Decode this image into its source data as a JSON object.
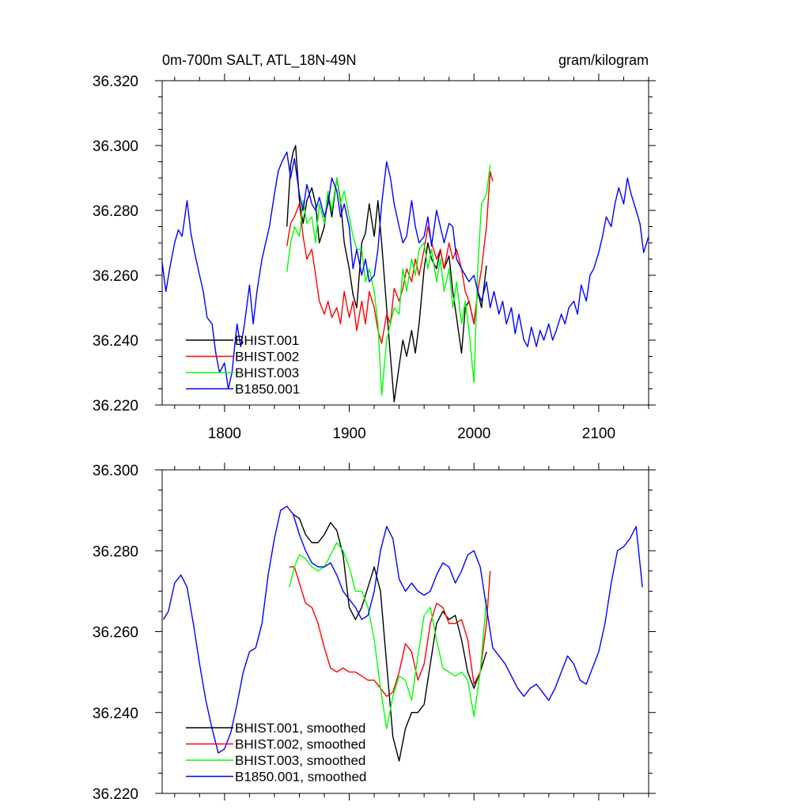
{
  "chart_data": [
    {
      "type": "line",
      "title": "0m-700m SALT, ATL_18N-49N",
      "units": "gram/kilogram",
      "xlim": [
        1750,
        2140
      ],
      "ylim": [
        36.22,
        36.32
      ],
      "x_ticks": [
        1800,
        1900,
        2000,
        2100
      ],
      "x_tick_labels": [
        "1800",
        "1900",
        "2000",
        "2100"
      ],
      "y_ticks": [
        36.22,
        36.24,
        36.26,
        36.28,
        36.3,
        36.32
      ],
      "y_tick_labels": [
        "36.220",
        "36.240",
        "36.260",
        "36.280",
        "36.300",
        "36.320"
      ],
      "grid": false,
      "legend_position": "bottom-left",
      "series": [
        {
          "name": "BHIST.001",
          "color": "#000000",
          "x": [
            1850,
            1853,
            1855,
            1857,
            1860,
            1863,
            1866,
            1870,
            1873,
            1876,
            1880,
            1883,
            1886,
            1890,
            1893,
            1896,
            1900,
            1903,
            1906,
            1910,
            1913,
            1916,
            1920,
            1923,
            1926,
            1930,
            1933,
            1936,
            1940,
            1943,
            1946,
            1950,
            1953,
            1956,
            1960,
            1963,
            1966,
            1970,
            1973,
            1976,
            1980,
            1983,
            1986,
            1990,
            1993,
            1996,
            2000,
            2003,
            2006,
            2010
          ],
          "y": [
            36.275,
            36.294,
            36.298,
            36.3,
            36.283,
            36.276,
            36.283,
            36.287,
            36.282,
            36.27,
            36.275,
            36.285,
            36.278,
            36.29,
            36.283,
            36.27,
            36.262,
            36.254,
            36.25,
            36.27,
            36.273,
            36.282,
            36.272,
            36.283,
            36.27,
            36.25,
            36.235,
            36.221,
            36.232,
            36.24,
            36.235,
            36.243,
            36.236,
            36.245,
            36.262,
            36.27,
            36.265,
            36.262,
            36.268,
            36.262,
            36.266,
            36.255,
            36.247,
            36.236,
            36.25,
            36.252,
            36.245,
            36.255,
            36.25,
            36.263
          ]
        },
        {
          "name": "BHIST.002",
          "color": "#ff0000",
          "x": [
            1850,
            1853,
            1856,
            1860,
            1863,
            1866,
            1870,
            1873,
            1876,
            1880,
            1883,
            1886,
            1890,
            1893,
            1896,
            1900,
            1903,
            1906,
            1910,
            1913,
            1916,
            1920,
            1923,
            1926,
            1930,
            1933,
            1936,
            1940,
            1943,
            1946,
            1950,
            1953,
            1956,
            1960,
            1963,
            1966,
            1970,
            1973,
            1976,
            1980,
            1983,
            1986,
            1990,
            1993,
            1996,
            2000,
            2003,
            2006,
            2010,
            2013,
            2015
          ],
          "y": [
            36.269,
            36.276,
            36.278,
            36.282,
            36.272,
            36.265,
            36.268,
            36.26,
            36.252,
            36.248,
            36.252,
            36.247,
            36.25,
            36.245,
            36.255,
            36.247,
            36.252,
            36.243,
            36.252,
            36.245,
            36.255,
            36.25,
            36.243,
            36.239,
            36.248,
            36.245,
            36.256,
            36.252,
            36.256,
            36.262,
            36.258,
            36.265,
            36.26,
            36.268,
            36.275,
            36.27,
            36.265,
            36.268,
            36.262,
            36.27,
            36.265,
            36.268,
            36.262,
            36.255,
            36.252,
            36.245,
            36.255,
            36.262,
            36.275,
            36.292,
            36.289
          ]
        },
        {
          "name": "BHIST.003",
          "color": "#00ff00",
          "x": [
            1850,
            1853,
            1856,
            1860,
            1863,
            1866,
            1870,
            1873,
            1876,
            1880,
            1883,
            1886,
            1890,
            1893,
            1896,
            1900,
            1903,
            1906,
            1910,
            1913,
            1916,
            1920,
            1923,
            1926,
            1930,
            1933,
            1936,
            1940,
            1943,
            1946,
            1950,
            1953,
            1956,
            1960,
            1963,
            1966,
            1970,
            1973,
            1976,
            1980,
            1983,
            1986,
            1990,
            1993,
            1996,
            2000,
            2003,
            2006,
            2010,
            2013
          ],
          "y": [
            36.261,
            36.27,
            36.275,
            36.272,
            36.283,
            36.276,
            36.278,
            36.27,
            36.282,
            36.276,
            36.286,
            36.28,
            36.29,
            36.282,
            36.286,
            36.278,
            36.272,
            36.268,
            36.268,
            36.258,
            36.262,
            36.255,
            36.245,
            36.223,
            36.24,
            36.245,
            36.25,
            36.248,
            36.262,
            36.255,
            36.265,
            36.26,
            36.268,
            36.27,
            36.262,
            36.268,
            36.258,
            36.265,
            36.255,
            36.262,
            36.25,
            36.258,
            36.245,
            36.252,
            36.243,
            36.227,
            36.262,
            36.282,
            36.285,
            36.294
          ]
        },
        {
          "name": "B1850.001",
          "color": "#0000ff",
          "x": [
            1750,
            1753,
            1756,
            1760,
            1763,
            1766,
            1770,
            1773,
            1776,
            1780,
            1783,
            1786,
            1790,
            1793,
            1796,
            1800,
            1803,
            1806,
            1810,
            1813,
            1816,
            1820,
            1823,
            1826,
            1830,
            1833,
            1836,
            1840,
            1843,
            1846,
            1850,
            1853,
            1856,
            1860,
            1863,
            1866,
            1870,
            1873,
            1876,
            1880,
            1883,
            1886,
            1890,
            1893,
            1896,
            1900,
            1903,
            1906,
            1910,
            1913,
            1916,
            1920,
            1923,
            1926,
            1930,
            1933,
            1936,
            1940,
            1943,
            1946,
            1950,
            1953,
            1956,
            1960,
            1963,
            1966,
            1970,
            1973,
            1976,
            1980,
            1983,
            1986,
            1990,
            1993,
            1996,
            2000,
            2003,
            2006,
            2010,
            2013,
            2016,
            2020,
            2023,
            2026,
            2030,
            2033,
            2036,
            2040,
            2043,
            2046,
            2050,
            2053,
            2056,
            2060,
            2063,
            2066,
            2070,
            2073,
            2076,
            2080,
            2083,
            2086,
            2090,
            2093,
            2096,
            2100,
            2103,
            2106,
            2110,
            2113,
            2116,
            2120,
            2123,
            2126,
            2130,
            2133,
            2136,
            2140
          ],
          "y": [
            36.264,
            36.255,
            36.262,
            36.27,
            36.274,
            36.272,
            36.283,
            36.273,
            36.267,
            36.26,
            36.255,
            36.247,
            36.245,
            36.236,
            36.23,
            36.233,
            36.225,
            36.23,
            36.245,
            36.238,
            36.245,
            36.257,
            36.245,
            36.255,
            36.265,
            36.27,
            36.275,
            36.285,
            36.292,
            36.295,
            36.298,
            36.29,
            36.296,
            36.285,
            36.28,
            36.288,
            36.282,
            36.28,
            36.284,
            36.278,
            36.282,
            36.29,
            36.286,
            36.278,
            36.282,
            36.275,
            36.262,
            36.268,
            36.26,
            36.265,
            36.258,
            36.26,
            36.268,
            36.282,
            36.295,
            36.29,
            36.282,
            36.275,
            36.27,
            36.272,
            36.283,
            36.275,
            36.27,
            36.272,
            36.278,
            36.269,
            36.28,
            36.275,
            36.27,
            36.276,
            36.275,
            36.265,
            36.262,
            36.26,
            36.258,
            36.26,
            36.255,
            36.252,
            36.258,
            36.25,
            36.255,
            36.248,
            36.252,
            36.245,
            36.25,
            36.242,
            36.248,
            36.24,
            36.238,
            36.244,
            36.238,
            36.243,
            36.24,
            36.245,
            36.24,
            36.243,
            36.248,
            36.245,
            36.25,
            36.252,
            36.248,
            36.257,
            36.252,
            36.26,
            36.262,
            36.267,
            36.272,
            36.278,
            36.275,
            36.282,
            36.287,
            36.282,
            36.29,
            36.285,
            36.28,
            36.276,
            36.267,
            36.272
          ]
        }
      ]
    },
    {
      "type": "line",
      "xlim": [
        1750,
        2140
      ],
      "ylim": [
        36.22,
        36.3
      ],
      "x_ticks": [
        1800,
        1900,
        2000,
        2100
      ],
      "y_ticks": [
        36.22,
        36.24,
        36.26,
        36.28,
        36.3
      ],
      "y_tick_labels": [
        "36.220",
        "36.240",
        "36.260",
        "36.280",
        "36.300"
      ],
      "grid": false,
      "legend_position": "bottom-left",
      "series": [
        {
          "name": "BHIST.001, smoothed",
          "color": "#000000",
          "x": [
            1855,
            1860,
            1865,
            1870,
            1875,
            1880,
            1885,
            1890,
            1895,
            1900,
            1905,
            1910,
            1915,
            1920,
            1925,
            1930,
            1935,
            1940,
            1945,
            1950,
            1955,
            1960,
            1965,
            1970,
            1975,
            1980,
            1985,
            1990,
            1995,
            2000,
            2005,
            2010
          ],
          "y": [
            36.289,
            36.288,
            36.284,
            36.282,
            36.282,
            36.284,
            36.287,
            36.285,
            36.279,
            36.266,
            36.263,
            36.266,
            36.271,
            36.276,
            36.27,
            36.252,
            36.234,
            36.228,
            36.236,
            36.24,
            36.24,
            36.242,
            36.252,
            36.262,
            36.265,
            36.263,
            36.264,
            36.258,
            36.25,
            36.246,
            36.25,
            36.255
          ]
        },
        {
          "name": "BHIST.002, smoothed",
          "color": "#ff0000",
          "x": [
            1852,
            1856,
            1860,
            1865,
            1870,
            1875,
            1880,
            1885,
            1890,
            1895,
            1900,
            1905,
            1910,
            1915,
            1920,
            1925,
            1930,
            1935,
            1940,
            1945,
            1950,
            1955,
            1960,
            1965,
            1970,
            1975,
            1980,
            1985,
            1990,
            1995,
            2000,
            2005,
            2010,
            2013
          ],
          "y": [
            36.276,
            36.276,
            36.272,
            36.267,
            36.266,
            36.262,
            36.256,
            36.251,
            36.25,
            36.251,
            36.25,
            36.25,
            36.249,
            36.248,
            36.248,
            36.246,
            36.244,
            36.245,
            36.25,
            36.257,
            36.255,
            36.248,
            36.252,
            36.262,
            36.267,
            36.266,
            36.262,
            36.262,
            36.263,
            36.258,
            36.247,
            36.25,
            36.262,
            36.275
          ]
        },
        {
          "name": "BHIST.003, smoothed",
          "color": "#00ff00",
          "x": [
            1852,
            1856,
            1860,
            1865,
            1870,
            1875,
            1880,
            1885,
            1890,
            1895,
            1900,
            1905,
            1910,
            1915,
            1920,
            1925,
            1930,
            1935,
            1940,
            1945,
            1950,
            1955,
            1960,
            1965,
            1970,
            1975,
            1980,
            1985,
            1990,
            1995,
            2000,
            2005,
            2010
          ],
          "y": [
            36.271,
            36.276,
            36.279,
            36.278,
            36.276,
            36.275,
            36.276,
            36.279,
            36.282,
            36.28,
            36.276,
            36.27,
            36.27,
            36.266,
            36.258,
            36.246,
            36.236,
            36.244,
            36.249,
            36.248,
            36.243,
            36.254,
            36.264,
            36.266,
            36.258,
            36.251,
            36.25,
            36.249,
            36.25,
            36.248,
            36.239,
            36.25,
            36.268
          ]
        },
        {
          "name": "B1850.001, smoothed",
          "color": "#0000ff",
          "x": [
            1751,
            1755,
            1760,
            1765,
            1770,
            1775,
            1780,
            1785,
            1790,
            1795,
            1800,
            1805,
            1810,
            1815,
            1820,
            1825,
            1830,
            1835,
            1840,
            1845,
            1850,
            1855,
            1860,
            1865,
            1870,
            1875,
            1880,
            1885,
            1890,
            1895,
            1900,
            1905,
            1910,
            1915,
            1920,
            1925,
            1930,
            1935,
            1940,
            1945,
            1950,
            1955,
            1960,
            1965,
            1970,
            1975,
            1980,
            1985,
            1990,
            1995,
            2000,
            2005,
            2010,
            2015,
            2020,
            2025,
            2030,
            2035,
            2040,
            2045,
            2050,
            2055,
            2060,
            2065,
            2070,
            2075,
            2080,
            2085,
            2090,
            2095,
            2100,
            2105,
            2110,
            2115,
            2120,
            2125,
            2130,
            2135
          ],
          "y": [
            36.263,
            36.265,
            36.272,
            36.274,
            36.271,
            36.262,
            36.252,
            36.243,
            36.236,
            36.23,
            36.231,
            36.235,
            36.242,
            36.25,
            36.255,
            36.256,
            36.262,
            36.274,
            36.283,
            36.29,
            36.291,
            36.289,
            36.284,
            36.28,
            36.277,
            36.276,
            36.276,
            36.277,
            36.274,
            36.27,
            36.268,
            36.266,
            36.263,
            36.264,
            36.27,
            36.28,
            36.286,
            36.283,
            36.273,
            36.27,
            36.272,
            36.27,
            36.269,
            36.27,
            36.274,
            36.277,
            36.276,
            36.272,
            36.275,
            36.279,
            36.28,
            36.276,
            36.266,
            36.256,
            36.254,
            36.252,
            36.249,
            36.246,
            36.244,
            36.246,
            36.247,
            36.245,
            36.243,
            36.246,
            36.25,
            36.254,
            36.252,
            36.248,
            36.247,
            36.251,
            36.255,
            36.262,
            36.272,
            36.28,
            36.281,
            36.283,
            36.286,
            36.271
          ]
        }
      ]
    }
  ]
}
